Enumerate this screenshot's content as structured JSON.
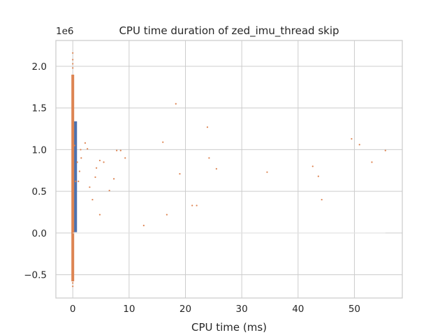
{
  "chart_data": {
    "type": "scatter",
    "title": "CPU time duration of zed_imu_thread skip",
    "xlabel": "CPU time (ms)",
    "ylabel": "",
    "y_offset_label": "1e6",
    "xlim": [
      -3,
      58.5
    ],
    "ylim": [
      -0.78,
      2.31
    ],
    "x_ticks": [
      0,
      10,
      20,
      30,
      40,
      50
    ],
    "y_ticks": [
      -0.5,
      0.0,
      0.5,
      1.0,
      1.5,
      2.0
    ],
    "y_tick_labels": [
      "−0.5",
      "0.0",
      "0.5",
      "1.0",
      "1.5",
      "2.0"
    ],
    "grid": true,
    "colors": {
      "bar": "#4c72b0",
      "scatter": "#dd8452",
      "grid": "#cccccc",
      "text": "#262626"
    },
    "series": [
      {
        "kind": "bar",
        "x_range": [
          0.15,
          0.75
        ],
        "y_range": [
          0.01,
          1.34
        ]
      },
      {
        "kind": "band",
        "x": 0.0,
        "y_range": [
          -0.58,
          1.9
        ]
      },
      {
        "kind": "scatter",
        "points": [
          [
            0,
            2.16
          ],
          [
            0,
            2.08
          ],
          [
            0,
            2.03
          ],
          [
            0,
            1.98
          ],
          [
            0,
            -0.6
          ],
          [
            0,
            -0.64
          ],
          [
            0.3,
            1.05
          ],
          [
            0.5,
            0.62
          ],
          [
            0.8,
            0.85
          ],
          [
            1.0,
            0.62
          ],
          [
            1.2,
            0.74
          ],
          [
            1.4,
            1.0
          ],
          [
            1.5,
            0.9
          ],
          [
            2.2,
            1.08
          ],
          [
            2.6,
            1.01
          ],
          [
            3.0,
            0.55
          ],
          [
            3.5,
            0.4
          ],
          [
            4.0,
            0.67
          ],
          [
            4.2,
            0.78
          ],
          [
            4.8,
            0.87
          ],
          [
            4.8,
            0.22
          ],
          [
            5.5,
            0.85
          ],
          [
            6.5,
            0.51
          ],
          [
            7.3,
            0.65
          ],
          [
            7.8,
            0.99
          ],
          [
            8.5,
            0.99
          ],
          [
            9.3,
            0.9
          ],
          [
            12.6,
            0.09
          ],
          [
            16.0,
            1.09
          ],
          [
            16.7,
            0.22
          ],
          [
            18.3,
            1.55
          ],
          [
            19.0,
            0.71
          ],
          [
            21.2,
            0.33
          ],
          [
            22.0,
            0.33
          ],
          [
            23.9,
            1.27
          ],
          [
            24.2,
            0.9
          ],
          [
            25.5,
            0.77
          ],
          [
            34.5,
            0.73
          ],
          [
            42.6,
            0.8
          ],
          [
            43.6,
            0.68
          ],
          [
            44.2,
            0.4
          ],
          [
            49.5,
            1.13
          ],
          [
            50.9,
            1.06
          ],
          [
            53.1,
            0.85
          ],
          [
            55.5,
            0.99
          ]
        ]
      },
      {
        "kind": "baseline",
        "y": 0.0,
        "x_range": [
          0,
          55.5
        ]
      }
    ]
  }
}
